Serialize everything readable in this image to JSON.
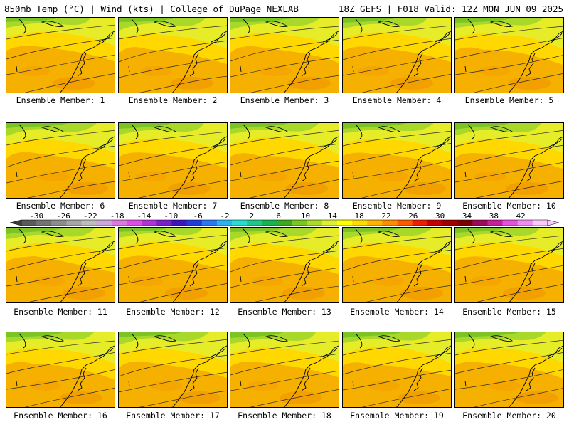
{
  "header": {
    "left_title": "850mb Temp (°C) | Wind (kts) | College of DuPage NEXLAB",
    "right_title": "18Z GEFS | F018 Valid: 12Z MON JUN 09 2025"
  },
  "members": [
    "Ensemble Member: 1",
    "Ensemble Member: 2",
    "Ensemble Member: 3",
    "Ensemble Member: 4",
    "Ensemble Member: 5",
    "Ensemble Member: 6",
    "Ensemble Member: 7",
    "Ensemble Member: 8",
    "Ensemble Member: 9",
    "Ensemble Member: 10",
    "Ensemble Member: 11",
    "Ensemble Member: 12",
    "Ensemble Member: 13",
    "Ensemble Member: 14",
    "Ensemble Member: 15",
    "Ensemble Member: 16",
    "Ensemble Member: 17",
    "Ensemble Member: 18",
    "Ensemble Member: 19",
    "Ensemble Member: 20"
  ],
  "colorbar": {
    "labels": [
      "-30",
      "-26",
      "-22",
      "-18",
      "-14",
      "-10",
      "-6",
      "-2",
      "2",
      "6",
      "10",
      "14",
      "18",
      "22",
      "26",
      "30",
      "34",
      "38",
      "42"
    ],
    "colors": [
      "#5a5a5a",
      "#737373",
      "#8c8c8c",
      "#a6a6a6",
      "#bdbdbd",
      "#cfa5de",
      "#dc78e0",
      "#e24ce6",
      "#b232d8",
      "#7a1ec8",
      "#3c14c0",
      "#1e3cdc",
      "#2878f0",
      "#28b4f0",
      "#28dcd2",
      "#1ec88c",
      "#14b450",
      "#3caa1e",
      "#78c81e",
      "#aadc28",
      "#dcf032",
      "#ffff00",
      "#ffdc00",
      "#ffb400",
      "#ff8c00",
      "#ff5a00",
      "#f01e00",
      "#c80000",
      "#a00000",
      "#7a0000",
      "#9c0a5a",
      "#c81ea0",
      "#e650dc",
      "#f08cf0",
      "#fac8fa"
    ]
  }
}
